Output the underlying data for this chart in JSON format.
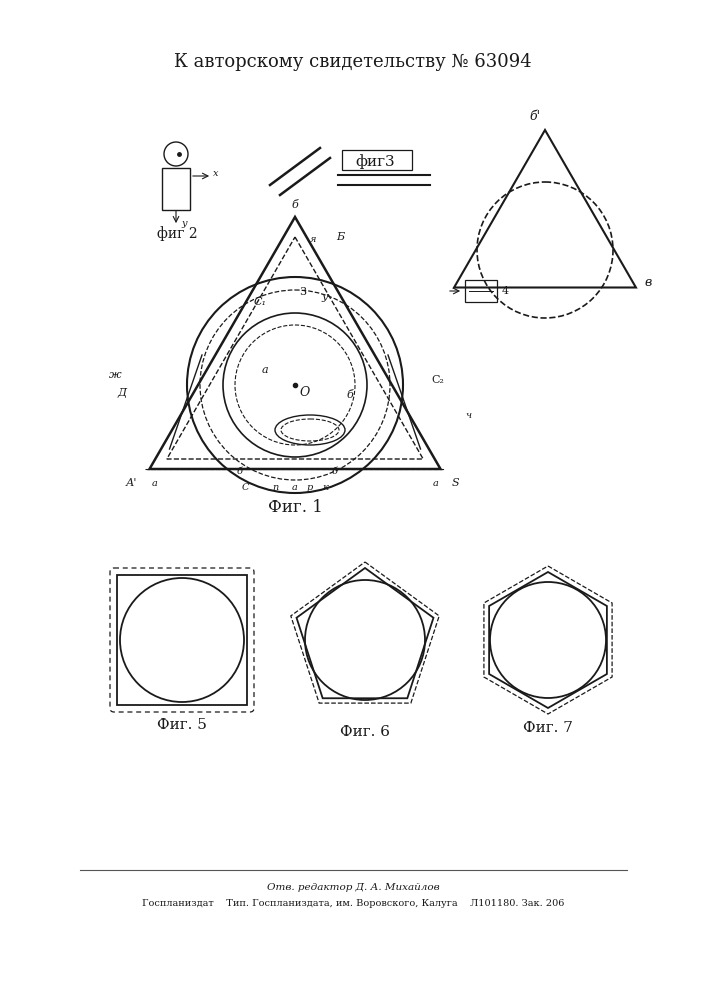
{
  "title": "К авторскому свидетельству № 63094",
  "footer_line1": "Отв. редактор Д. А. Михайлов",
  "footer_line2": "Госпланиздат    Тип. Госпланиздата, им. Воровского, Калуга    Л101180. Зак. 206",
  "bg_color": "#ffffff",
  "line_color": "#1a1a1a",
  "fig1_label": "Фиг. 1",
  "fig2_label": "фиг 2",
  "fig3_label": "фиг3",
  "fig5_label": "Фиг. 5",
  "fig6_label": "Фиг. 6",
  "fig7_label": "Фиг. 7"
}
